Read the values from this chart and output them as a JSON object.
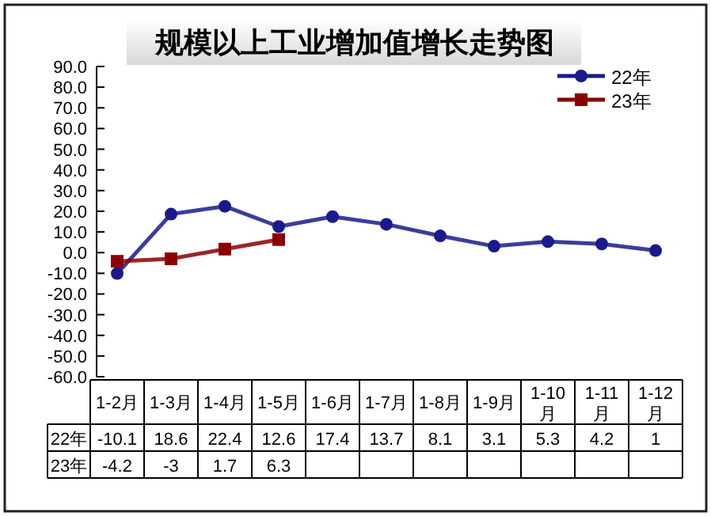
{
  "chart_data": {
    "type": "line",
    "title": "规模以上工业增加值增长走势图",
    "categories": [
      "1-2月",
      "1-3月",
      "1-4月",
      "1-5月",
      "1-6月",
      "1-7月",
      "1-8月",
      "1-9月",
      "1-10月",
      "1-11月",
      "1-12月"
    ],
    "series": [
      {
        "name": "22年",
        "color": "#1a1a8c",
        "marker": "circle",
        "values": [
          -10.1,
          18.6,
          22.4,
          12.6,
          17.4,
          13.7,
          8.1,
          3.1,
          5.3,
          4.2,
          1
        ]
      },
      {
        "name": "23年",
        "color": "#8b0000",
        "marker": "square",
        "values": [
          -4.2,
          -3,
          1.7,
          6.3,
          null,
          null,
          null,
          null,
          null,
          null,
          null
        ]
      }
    ],
    "ylim": [
      -60,
      90
    ],
    "yticks": [
      {
        "value": 90,
        "label": "90.0"
      },
      {
        "value": 80,
        "label": "80.0"
      },
      {
        "value": 70,
        "label": "70.0"
      },
      {
        "value": 60,
        "label": "60.0"
      },
      {
        "value": 50,
        "label": "50.0"
      },
      {
        "value": 40,
        "label": "40.0"
      },
      {
        "value": 30,
        "label": "30.0"
      },
      {
        "value": 20,
        "label": "20.0"
      },
      {
        "value": 10,
        "label": "10.0"
      },
      {
        "value": 0,
        "label": "0.0"
      },
      {
        "value": -10,
        "label": "-10.0"
      },
      {
        "value": -20,
        "label": "-20.0"
      },
      {
        "value": -30,
        "label": "-30.0"
      },
      {
        "value": -40,
        "label": "-40.0"
      },
      {
        "value": -50,
        "label": "-50.0"
      },
      {
        "value": -60,
        "label": "-60.0"
      }
    ],
    "legend": "top right",
    "data_labels": true
  }
}
